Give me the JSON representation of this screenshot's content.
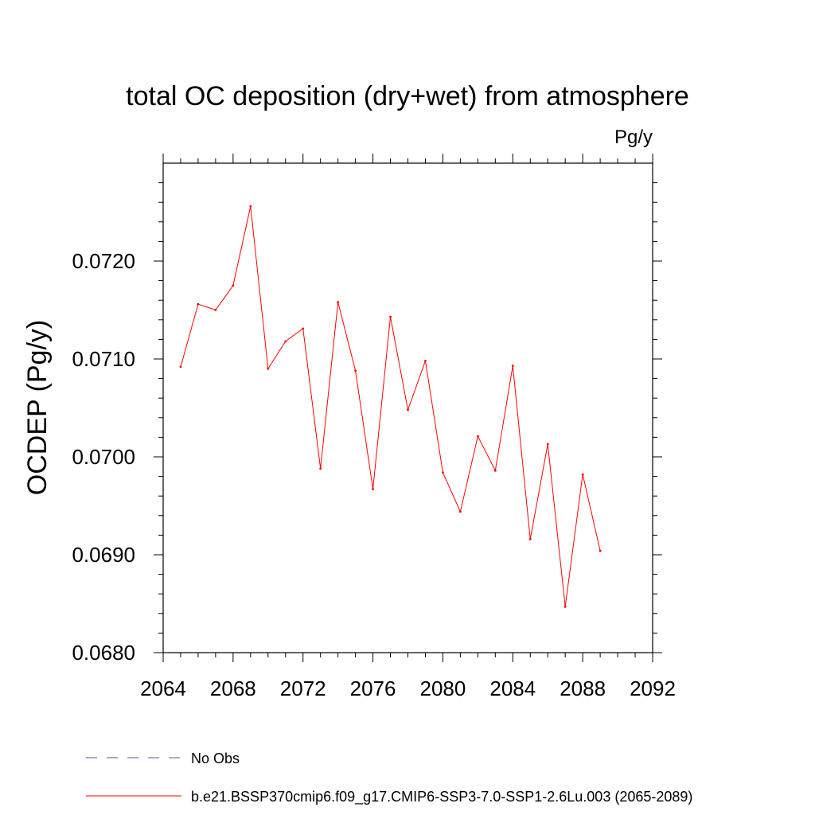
{
  "chart_data": {
    "type": "line",
    "title": "total OC deposition (dry+wet) from atmosphere",
    "units_label": "Pg/y",
    "ylabel": "OCDEP  (Pg/y)",
    "xlabel": "",
    "xlim": [
      2064,
      2092
    ],
    "ylim": [
      0.068,
      0.073
    ],
    "xticks": [
      2064,
      2068,
      2072,
      2076,
      2080,
      2084,
      2088,
      2092
    ],
    "xtick_labels": [
      "2064",
      "2068",
      "2072",
      "2076",
      "2080",
      "2084",
      "2088",
      "2092"
    ],
    "yticks": [
      0.068,
      0.069,
      0.07,
      0.071,
      0.072
    ],
    "ytick_labels": [
      "0.0680",
      "0.0690",
      "0.0700",
      "0.0710",
      "0.0720"
    ],
    "grid": false,
    "legend_position": "bottom",
    "series": [
      {
        "name": "b.e21.BSSP370cmip6.f09_g17.CMIP6-SSP3-7.0-SSP1-2.6Lu.003 (2065-2089)",
        "color": "#ff0000",
        "style": "solid",
        "x": [
          2065,
          2066,
          2067,
          2068,
          2069,
          2070,
          2071,
          2072,
          2073,
          2074,
          2075,
          2076,
          2077,
          2078,
          2079,
          2080,
          2081,
          2082,
          2083,
          2084,
          2085,
          2086,
          2087,
          2088,
          2089
        ],
        "values": [
          0.07092,
          0.07156,
          0.0715,
          0.07175,
          0.07256,
          0.0709,
          0.07118,
          0.07131,
          0.06988,
          0.07158,
          0.07088,
          0.06967,
          0.07143,
          0.07048,
          0.07098,
          0.06984,
          0.06944,
          0.07021,
          0.06986,
          0.07093,
          0.06916,
          0.07013,
          0.06847,
          0.06982,
          0.06904
        ]
      },
      {
        "name": "No Obs",
        "color": "#5a50a0",
        "style": "dashed",
        "x": [],
        "values": []
      }
    ]
  }
}
